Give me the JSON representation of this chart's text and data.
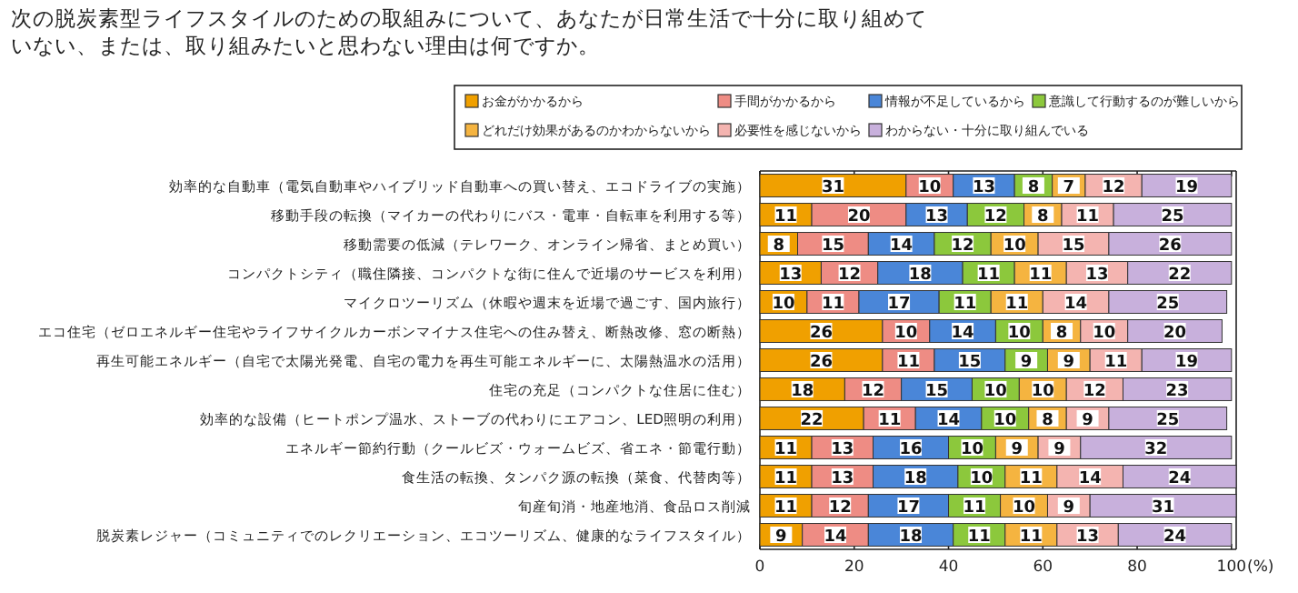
{
  "chart_data": {
    "type": "bar",
    "orientation": "horizontal",
    "stacked": true,
    "title": "次の脱炭素型ライフスタイルのための取組みについて、あなたが日常生活で十分に取り組めていない、または、取り組みたいと思わない理由は何ですか。",
    "xlabel": "(%)",
    "legend": "top",
    "data_labels": true,
    "grid": false,
    "xlim": [
      0,
      101
    ],
    "xticks": [
      0,
      20,
      40,
      60,
      80,
      100
    ],
    "categories": [
      "効率的な自動車（電気自動車やハイブリッド自動車への買い替え、エコドライブの実施）",
      "移動手段の転換（マイカーの代わりにバス・電車・自転車を利用する等）",
      "移動需要の低減（テレワーク、オンライン帰省、まとめ買い）",
      "コンパクトシティ（職住隣接、コンパクトな街に住んで近場のサービスを利用）",
      "マイクロツーリズム（休暇や週末を近場で過ごす、国内旅行）",
      "エコ住宅（ゼロエネルギー住宅やライフサイクルカーボンマイナス住宅への住み替え、断熱改修、窓の断熱）",
      "再生可能エネルギー（自宅で太陽光発電、自宅の電力を再生可能エネルギーに、太陽熱温水の活用）",
      "住宅の充足（コンパクトな住居に住む）",
      "効率的な設備（ヒートポンプ温水、ストーブの代わりにエアコン、LED照明の利用）",
      "エネルギー節約行動（クールビズ・ウォームビズ、省エネ・節電行動）",
      "食生活の転換、タンパク源の転換（菜食、代替肉等）",
      "旬産旬消・地産地消、食品ロス削減",
      "脱炭素レジャー（コミュニティでのレクリエーション、エコツーリズム、健康的なライフスタイル）"
    ],
    "series": [
      {
        "name": "お金がかかるから",
        "color": "#f0a000",
        "values": [
          31,
          11,
          8,
          13,
          10,
          26,
          26,
          18,
          22,
          11,
          11,
          11,
          9
        ]
      },
      {
        "name": "手間がかかるから",
        "color": "#ee8c84",
        "values": [
          10,
          20,
          15,
          12,
          11,
          10,
          11,
          12,
          11,
          13,
          13,
          12,
          14
        ]
      },
      {
        "name": "情報が不足しているから",
        "color": "#4a86d8",
        "values": [
          13,
          13,
          14,
          18,
          17,
          14,
          15,
          15,
          14,
          16,
          18,
          17,
          18
        ]
      },
      {
        "name": "意識して行動するのが難しいから",
        "color": "#8cc83c",
        "values": [
          8,
          12,
          12,
          11,
          11,
          10,
          9,
          10,
          10,
          10,
          10,
          11,
          11
        ]
      },
      {
        "name": "どれだけ効果があるのかわからないから",
        "color": "#f5b440",
        "values": [
          7,
          8,
          10,
          11,
          11,
          8,
          9,
          10,
          8,
          9,
          11,
          10,
          11
        ]
      },
      {
        "name": "必要性を感じないから",
        "color": "#f4b4b0",
        "values": [
          12,
          11,
          15,
          13,
          14,
          10,
          11,
          12,
          9,
          9,
          14,
          9,
          13
        ]
      },
      {
        "name": "わからない・十分に取り組んでいる",
        "color": "#c8b0dc",
        "values": [
          19,
          25,
          26,
          22,
          25,
          20,
          19,
          23,
          25,
          32,
          24,
          31,
          24
        ]
      }
    ]
  }
}
